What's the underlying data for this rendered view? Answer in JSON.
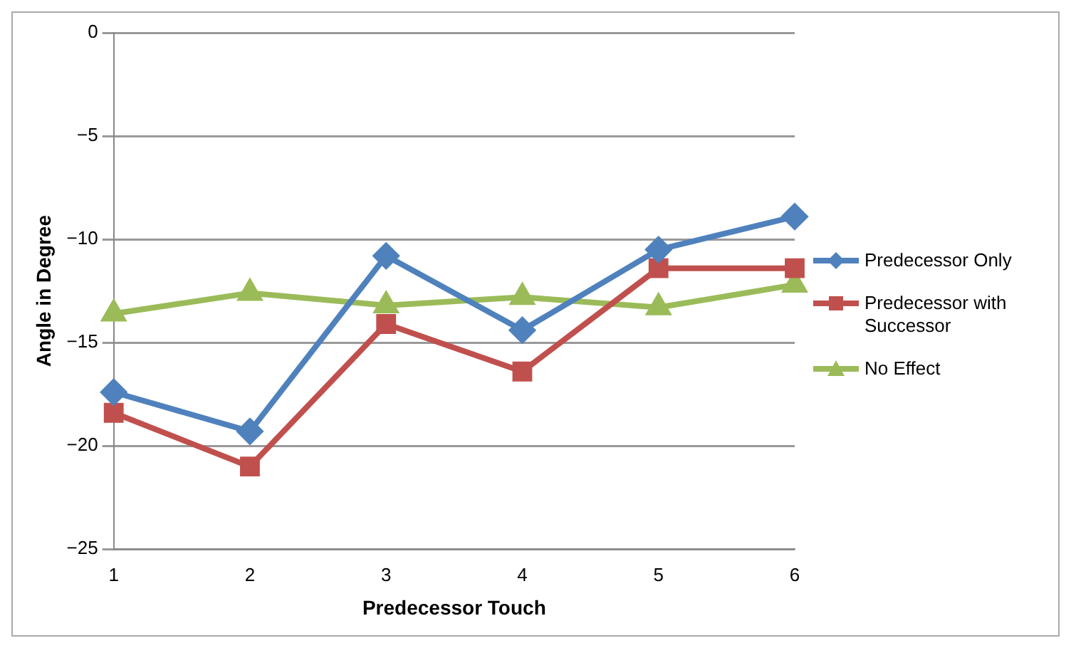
{
  "chart_data": {
    "type": "line",
    "xlabel": "Predecessor Touch",
    "ylabel": "Angle in Degree",
    "categories": [
      "1",
      "2",
      "3",
      "4",
      "5",
      "6"
    ],
    "ylim": [
      -25,
      0
    ],
    "yticks": [
      -25,
      -20,
      -15,
      -10,
      -5,
      0
    ],
    "grid": "y",
    "legend": "right",
    "series": [
      {
        "name": "Predecessor Only",
        "color": "#4f81bd",
        "marker": "diamond",
        "values": [
          -17.4,
          -19.3,
          -10.8,
          -14.4,
          -10.5,
          -8.9
        ]
      },
      {
        "name": "Predecessor with Successor",
        "color": "#c0504d",
        "marker": "square",
        "values": [
          -18.4,
          -21.0,
          -14.1,
          -16.4,
          -11.4,
          -11.4
        ]
      },
      {
        "name": "No Effect",
        "color": "#9bbb59",
        "marker": "triangle",
        "values": [
          -13.6,
          -12.6,
          -13.2,
          -12.8,
          -13.3,
          -12.2
        ]
      }
    ]
  }
}
